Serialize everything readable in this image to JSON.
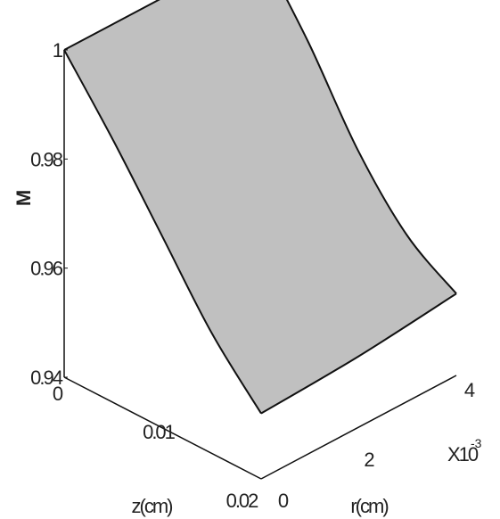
{
  "chart_data": {
    "type": "surface",
    "axes": {
      "z": {
        "label": "z(cm)",
        "ticks": [
          {
            "value": 0,
            "label": "0"
          },
          {
            "value": 0.01,
            "label": "0.01"
          },
          {
            "value": 0.02,
            "label": "0.02"
          }
        ],
        "range": [
          0,
          0.02
        ]
      },
      "r": {
        "label": "r(cm)",
        "ticks": [
          {
            "value": 0,
            "label": "0"
          },
          {
            "value": 2,
            "label": "2"
          },
          {
            "value": 4,
            "label": "4"
          }
        ],
        "range": [
          0,
          4
        ],
        "multiplier_base": "X10",
        "multiplier_exp": "-3"
      },
      "M": {
        "label": "M",
        "ticks": [
          {
            "value": 0.94,
            "label": "0.94"
          },
          {
            "value": 0.96,
            "label": "0.96"
          },
          {
            "value": 0.98,
            "label": "0.98"
          },
          {
            "value": 1,
            "label": "1"
          }
        ],
        "range": [
          0.94,
          1
        ]
      }
    },
    "surface": {
      "edges": [
        {
          "name": "z=0",
          "points": [
            [
              0,
              0.0,
              1.0
            ],
            [
              0,
              2.0,
              1.0
            ],
            [
              0,
              4.0,
              1.0
            ]
          ]
        },
        {
          "name": "r=4e-3",
          "points": [
            [
              0,
              4.0,
              1.0
            ],
            [
              0.005,
              4.0,
              0.987
            ],
            [
              0.01,
              4.0,
              0.972
            ],
            [
              0.015,
              4.0,
              0.961
            ],
            [
              0.02,
              4.0,
              0.955
            ]
          ]
        },
        {
          "name": "z=0.02",
          "points": [
            [
              0.02,
              4.0,
              0.955
            ],
            [
              0.02,
              2.0,
              0.953
            ],
            [
              0.02,
              0.0,
              0.952
            ]
          ]
        },
        {
          "name": "r=0",
          "points": [
            [
              0.02,
              0.0,
              0.952
            ],
            [
              0.015,
              0.0,
              0.962
            ],
            [
              0.01,
              0.0,
              0.975
            ],
            [
              0.005,
              0.0,
              0.988
            ],
            [
              0,
              0.0,
              1.0
            ]
          ]
        }
      ],
      "color": "#c0c0c0",
      "edge_color": "#111111"
    }
  }
}
